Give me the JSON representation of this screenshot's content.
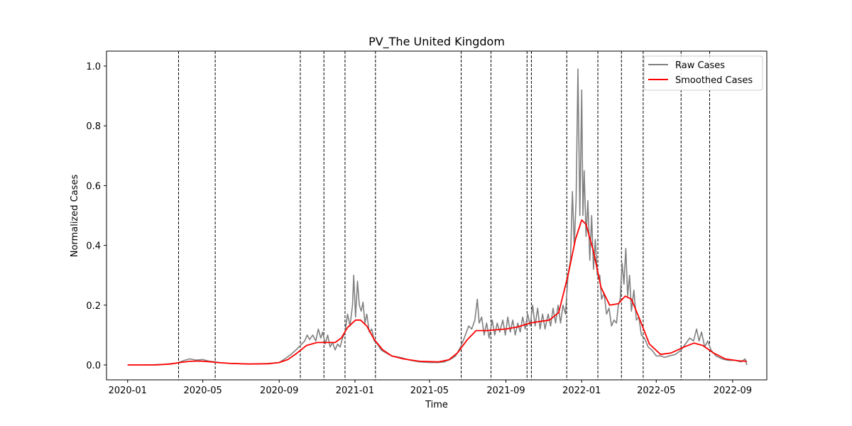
{
  "chart_data": {
    "type": "line",
    "title": "PV_The United Kingdom",
    "xlabel": "Time",
    "ylabel": "Normalized Cases",
    "xlim": [
      "2019-11-28",
      "2022-10-26"
    ],
    "ylim": [
      -0.05,
      1.05
    ],
    "x_ticks": [
      "2020-01",
      "2020-05",
      "2020-09",
      "2021-01",
      "2021-05",
      "2021-09",
      "2022-01",
      "2022-05",
      "2022-09"
    ],
    "y_ticks": [
      "0.0",
      "0.2",
      "0.4",
      "0.6",
      "0.8",
      "1.0"
    ],
    "grid": false,
    "legend": {
      "placement": "top-right",
      "entries": [
        "Raw Cases",
        "Smoothed Cases"
      ]
    },
    "colors": {
      "raw": "#808080",
      "smoothed": "#ff0000",
      "vlines": "#000000"
    },
    "vertical_lines": [
      "2020-03-23",
      "2020-05-21",
      "2020-10-05",
      "2020-11-12",
      "2020-12-16",
      "2021-02-03",
      "2021-06-21",
      "2021-08-08",
      "2021-10-05",
      "2021-10-12",
      "2021-12-08",
      "2022-01-27",
      "2022-03-06",
      "2022-04-10",
      "2022-06-10",
      "2022-07-26"
    ],
    "series": [
      {
        "name": "Raw Cases",
        "points": [
          [
            "2020-01-01",
            0.0
          ],
          [
            "2020-02-01",
            0.0
          ],
          [
            "2020-03-01",
            0.002
          ],
          [
            "2020-03-20",
            0.006
          ],
          [
            "2020-04-01",
            0.015
          ],
          [
            "2020-04-10",
            0.02
          ],
          [
            "2020-04-20",
            0.016
          ],
          [
            "2020-05-01",
            0.018
          ],
          [
            "2020-05-10",
            0.013
          ],
          [
            "2020-05-20",
            0.01
          ],
          [
            "2020-06-01",
            0.007
          ],
          [
            "2020-06-15",
            0.005
          ],
          [
            "2020-07-01",
            0.004
          ],
          [
            "2020-07-15",
            0.003
          ],
          [
            "2020-08-01",
            0.004
          ],
          [
            "2020-08-15",
            0.005
          ],
          [
            "2020-09-01",
            0.008
          ],
          [
            "2020-09-10",
            0.02
          ],
          [
            "2020-09-20",
            0.035
          ],
          [
            "2020-09-28",
            0.05
          ],
          [
            "2020-10-05",
            0.065
          ],
          [
            "2020-10-12",
            0.08
          ],
          [
            "2020-10-16",
            0.1
          ],
          [
            "2020-10-20",
            0.085
          ],
          [
            "2020-10-25",
            0.1
          ],
          [
            "2020-10-30",
            0.08
          ],
          [
            "2020-11-03",
            0.12
          ],
          [
            "2020-11-07",
            0.09
          ],
          [
            "2020-11-10",
            0.11
          ],
          [
            "2020-11-14",
            0.07
          ],
          [
            "2020-11-18",
            0.1
          ],
          [
            "2020-11-22",
            0.06
          ],
          [
            "2020-11-26",
            0.075
          ],
          [
            "2020-11-30",
            0.05
          ],
          [
            "2020-12-04",
            0.07
          ],
          [
            "2020-12-08",
            0.06
          ],
          [
            "2020-12-12",
            0.09
          ],
          [
            "2020-12-16",
            0.11
          ],
          [
            "2020-12-20",
            0.17
          ],
          [
            "2020-12-24",
            0.13
          ],
          [
            "2020-12-28",
            0.2
          ],
          [
            "2020-12-30",
            0.3
          ],
          [
            "2021-01-02",
            0.16
          ],
          [
            "2021-01-05",
            0.28
          ],
          [
            "2021-01-08",
            0.2
          ],
          [
            "2021-01-11",
            0.18
          ],
          [
            "2021-01-14",
            0.21
          ],
          [
            "2021-01-17",
            0.14
          ],
          [
            "2021-01-20",
            0.17
          ],
          [
            "2021-01-24",
            0.11
          ],
          [
            "2021-01-28",
            0.12
          ],
          [
            "2021-02-01",
            0.08
          ],
          [
            "2021-02-06",
            0.07
          ],
          [
            "2021-02-12",
            0.05
          ],
          [
            "2021-02-20",
            0.04
          ],
          [
            "2021-03-01",
            0.03
          ],
          [
            "2021-03-15",
            0.025
          ],
          [
            "2021-04-01",
            0.015
          ],
          [
            "2021-04-15",
            0.01
          ],
          [
            "2021-05-01",
            0.008
          ],
          [
            "2021-05-15",
            0.008
          ],
          [
            "2021-05-25",
            0.01
          ],
          [
            "2021-06-05",
            0.02
          ],
          [
            "2021-06-12",
            0.03
          ],
          [
            "2021-06-20",
            0.06
          ],
          [
            "2021-06-26",
            0.09
          ],
          [
            "2021-07-03",
            0.13
          ],
          [
            "2021-07-08",
            0.12
          ],
          [
            "2021-07-13",
            0.15
          ],
          [
            "2021-07-17",
            0.22
          ],
          [
            "2021-07-20",
            0.14
          ],
          [
            "2021-07-24",
            0.16
          ],
          [
            "2021-07-28",
            0.1
          ],
          [
            "2021-08-01",
            0.14
          ],
          [
            "2021-08-05",
            0.09
          ],
          [
            "2021-08-10",
            0.15
          ],
          [
            "2021-08-14",
            0.1
          ],
          [
            "2021-08-18",
            0.14
          ],
          [
            "2021-08-22",
            0.11
          ],
          [
            "2021-08-27",
            0.15
          ],
          [
            "2021-08-31",
            0.1
          ],
          [
            "2021-09-04",
            0.16
          ],
          [
            "2021-09-08",
            0.11
          ],
          [
            "2021-09-12",
            0.15
          ],
          [
            "2021-09-16",
            0.1
          ],
          [
            "2021-09-20",
            0.14
          ],
          [
            "2021-09-24",
            0.11
          ],
          [
            "2021-09-28",
            0.16
          ],
          [
            "2021-10-02",
            0.12
          ],
          [
            "2021-10-06",
            0.17
          ],
          [
            "2021-10-10",
            0.13
          ],
          [
            "2021-10-14",
            0.2
          ],
          [
            "2021-10-18",
            0.13
          ],
          [
            "2021-10-22",
            0.19
          ],
          [
            "2021-10-26",
            0.12
          ],
          [
            "2021-10-30",
            0.17
          ],
          [
            "2021-11-03",
            0.12
          ],
          [
            "2021-11-08",
            0.17
          ],
          [
            "2021-11-12",
            0.13
          ],
          [
            "2021-11-16",
            0.19
          ],
          [
            "2021-11-20",
            0.14
          ],
          [
            "2021-11-24",
            0.2
          ],
          [
            "2021-11-28",
            0.14
          ],
          [
            "2021-12-02",
            0.2
          ],
          [
            "2021-12-06",
            0.17
          ],
          [
            "2021-12-10",
            0.3
          ],
          [
            "2021-12-14",
            0.35
          ],
          [
            "2021-12-17",
            0.58
          ],
          [
            "2021-12-20",
            0.4
          ],
          [
            "2021-12-23",
            0.55
          ],
          [
            "2021-12-26",
            0.99
          ],
          [
            "2021-12-29",
            0.5
          ],
          [
            "2022-01-01",
            0.92
          ],
          [
            "2022-01-03",
            0.5
          ],
          [
            "2022-01-05",
            0.65
          ],
          [
            "2022-01-08",
            0.43
          ],
          [
            "2022-01-11",
            0.55
          ],
          [
            "2022-01-14",
            0.35
          ],
          [
            "2022-01-17",
            0.5
          ],
          [
            "2022-01-20",
            0.32
          ],
          [
            "2022-01-23",
            0.42
          ],
          [
            "2022-01-26",
            0.3
          ],
          [
            "2022-01-30",
            0.3
          ],
          [
            "2022-02-02",
            0.22
          ],
          [
            "2022-02-06",
            0.24
          ],
          [
            "2022-02-10",
            0.17
          ],
          [
            "2022-02-14",
            0.19
          ],
          [
            "2022-02-18",
            0.13
          ],
          [
            "2022-02-22",
            0.15
          ],
          [
            "2022-02-26",
            0.14
          ],
          [
            "2022-03-01",
            0.2
          ],
          [
            "2022-03-04",
            0.22
          ],
          [
            "2022-03-07",
            0.34
          ],
          [
            "2022-03-10",
            0.27
          ],
          [
            "2022-03-13",
            0.39
          ],
          [
            "2022-03-16",
            0.23
          ],
          [
            "2022-03-19",
            0.3
          ],
          [
            "2022-03-22",
            0.18
          ],
          [
            "2022-03-26",
            0.25
          ],
          [
            "2022-03-30",
            0.15
          ],
          [
            "2022-04-03",
            0.16
          ],
          [
            "2022-04-07",
            0.1
          ],
          [
            "2022-04-12",
            0.09
          ],
          [
            "2022-04-18",
            0.06
          ],
          [
            "2022-04-24",
            0.05
          ],
          [
            "2022-05-01",
            0.03
          ],
          [
            "2022-05-08",
            0.03
          ],
          [
            "2022-05-15",
            0.025
          ],
          [
            "2022-05-22",
            0.03
          ],
          [
            "2022-06-01",
            0.035
          ],
          [
            "2022-06-10",
            0.05
          ],
          [
            "2022-06-17",
            0.07
          ],
          [
            "2022-06-24",
            0.09
          ],
          [
            "2022-06-30",
            0.08
          ],
          [
            "2022-07-05",
            0.12
          ],
          [
            "2022-07-09",
            0.08
          ],
          [
            "2022-07-13",
            0.11
          ],
          [
            "2022-07-18",
            0.06
          ],
          [
            "2022-07-23",
            0.08
          ],
          [
            "2022-07-28",
            0.05
          ],
          [
            "2022-08-05",
            0.03
          ],
          [
            "2022-08-15",
            0.02
          ],
          [
            "2022-08-25",
            0.015
          ],
          [
            "2022-09-05",
            0.015
          ],
          [
            "2022-09-15",
            0.01
          ],
          [
            "2022-09-21",
            0.02
          ],
          [
            "2022-09-24",
            0.0
          ]
        ]
      },
      {
        "name": "Smoothed Cases",
        "points": [
          [
            "2020-01-01",
            0.0
          ],
          [
            "2020-02-15",
            0.0
          ],
          [
            "2020-03-10",
            0.003
          ],
          [
            "2020-03-25",
            0.008
          ],
          [
            "2020-04-10",
            0.012
          ],
          [
            "2020-04-25",
            0.013
          ],
          [
            "2020-05-10",
            0.011
          ],
          [
            "2020-05-25",
            0.008
          ],
          [
            "2020-06-15",
            0.005
          ],
          [
            "2020-07-15",
            0.003
          ],
          [
            "2020-08-15",
            0.004
          ],
          [
            "2020-09-01",
            0.008
          ],
          [
            "2020-09-15",
            0.018
          ],
          [
            "2020-09-30",
            0.04
          ],
          [
            "2020-10-15",
            0.065
          ],
          [
            "2020-11-01",
            0.075
          ],
          [
            "2020-11-15",
            0.075
          ],
          [
            "2020-11-30",
            0.075
          ],
          [
            "2020-12-10",
            0.09
          ],
          [
            "2020-12-20",
            0.125
          ],
          [
            "2021-01-02",
            0.15
          ],
          [
            "2021-01-10",
            0.15
          ],
          [
            "2021-01-20",
            0.13
          ],
          [
            "2021-02-01",
            0.085
          ],
          [
            "2021-02-15",
            0.05
          ],
          [
            "2021-03-01",
            0.03
          ],
          [
            "2021-03-20",
            0.02
          ],
          [
            "2021-04-15",
            0.012
          ],
          [
            "2021-05-15",
            0.01
          ],
          [
            "2021-06-01",
            0.017
          ],
          [
            "2021-06-15",
            0.04
          ],
          [
            "2021-07-01",
            0.085
          ],
          [
            "2021-07-15",
            0.115
          ],
          [
            "2021-08-01",
            0.115
          ],
          [
            "2021-09-01",
            0.12
          ],
          [
            "2021-09-20",
            0.127
          ],
          [
            "2021-10-10",
            0.14
          ],
          [
            "2021-10-25",
            0.145
          ],
          [
            "2021-11-10",
            0.15
          ],
          [
            "2021-11-25",
            0.175
          ],
          [
            "2021-12-10",
            0.3
          ],
          [
            "2021-12-22",
            0.42
          ],
          [
            "2022-01-01",
            0.485
          ],
          [
            "2022-01-08",
            0.47
          ],
          [
            "2022-01-20",
            0.38
          ],
          [
            "2022-02-01",
            0.26
          ],
          [
            "2022-02-15",
            0.2
          ],
          [
            "2022-03-01",
            0.205
          ],
          [
            "2022-03-12",
            0.23
          ],
          [
            "2022-03-22",
            0.22
          ],
          [
            "2022-04-05",
            0.15
          ],
          [
            "2022-04-20",
            0.07
          ],
          [
            "2022-05-08",
            0.035
          ],
          [
            "2022-05-25",
            0.04
          ],
          [
            "2022-06-15",
            0.06
          ],
          [
            "2022-07-01",
            0.073
          ],
          [
            "2022-07-15",
            0.065
          ],
          [
            "2022-08-01",
            0.04
          ],
          [
            "2022-08-20",
            0.02
          ],
          [
            "2022-09-10",
            0.014
          ],
          [
            "2022-09-24",
            0.012
          ]
        ]
      }
    ]
  }
}
